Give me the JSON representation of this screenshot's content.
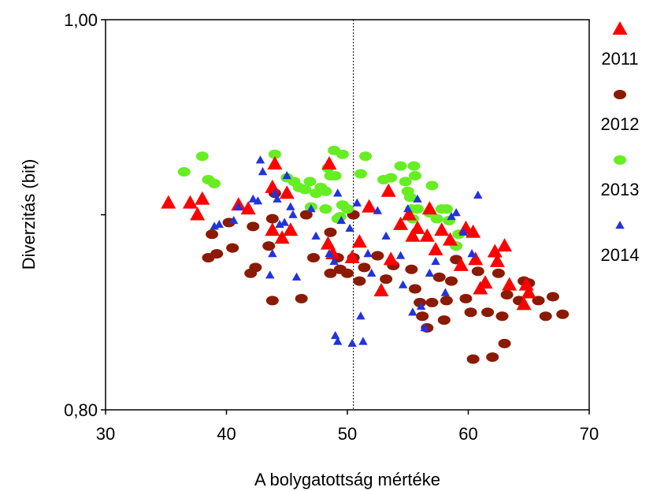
{
  "chart_data": {
    "type": "scatter",
    "xlabel": "A bolygatottság mértéke",
    "ylabel": "Diverzitás (bit)",
    "xlim": [
      30,
      70
    ],
    "ylim": [
      0.8,
      1.0
    ],
    "x_ticks": [
      "30",
      "40",
      "50",
      "60",
      "70"
    ],
    "y_ticks": [
      "0,80",
      "1,00"
    ],
    "grid": false,
    "legend_position": "right",
    "reference_line": {
      "x": 50.5,
      "style": "dotted"
    },
    "series": [
      {
        "name": "2011",
        "marker": "triangle-large",
        "color": "#ff0000",
        "points": [
          [
            35.2,
            0.906
          ],
          [
            37,
            0.906
          ],
          [
            37.6,
            0.9
          ],
          [
            38,
            0.908
          ],
          [
            41,
            0.905
          ],
          [
            41.8,
            0.903
          ],
          [
            43.8,
            0.914
          ],
          [
            44,
            0.926
          ],
          [
            43.8,
            0.892
          ],
          [
            44.6,
            0.888
          ],
          [
            45,
            0.911
          ],
          [
            45.3,
            0.892
          ],
          [
            48.5,
            0.926
          ],
          [
            48.4,
            0.885
          ],
          [
            48.8,
            0.88
          ],
          [
            50.4,
            0.878
          ],
          [
            51,
            0.886
          ],
          [
            51.8,
            0.904
          ],
          [
            52.8,
            0.861
          ],
          [
            53.4,
            0.912
          ],
          [
            53.6,
            0.877
          ],
          [
            54.4,
            0.895
          ],
          [
            55.1,
            0.9
          ],
          [
            55.4,
            0.889
          ],
          [
            55.8,
            0.893
          ],
          [
            56.8,
            0.903
          ],
          [
            56.6,
            0.889
          ],
          [
            57.3,
            0.882
          ],
          [
            57.8,
            0.892
          ],
          [
            58.5,
            0.887
          ],
          [
            59.4,
            0.874
          ],
          [
            59.8,
            0.893
          ],
          [
            60.4,
            0.891
          ],
          [
            60.6,
            0.877
          ],
          [
            61,
            0.862
          ],
          [
            61.4,
            0.865
          ],
          [
            62.2,
            0.881
          ],
          [
            62.4,
            0.876
          ],
          [
            63,
            0.884
          ],
          [
            63.4,
            0.864
          ],
          [
            64.6,
            0.854
          ],
          [
            64.8,
            0.864
          ],
          [
            65,
            0.86
          ]
        ]
      },
      {
        "name": "2012",
        "marker": "ellipse",
        "color": "#8b1a00",
        "points": [
          [
            38.5,
            0.878
          ],
          [
            38.8,
            0.89
          ],
          [
            39.2,
            0.88
          ],
          [
            40.2,
            0.896
          ],
          [
            40.5,
            0.883
          ],
          [
            42,
            0.87
          ],
          [
            42.4,
            0.873
          ],
          [
            42.2,
            0.894
          ],
          [
            43.5,
            0.884
          ],
          [
            43.8,
            0.898
          ],
          [
            43.8,
            0.856
          ],
          [
            44,
            0.911
          ],
          [
            46.2,
            0.857
          ],
          [
            46.6,
            0.9
          ],
          [
            47.2,
            0.878
          ],
          [
            48.6,
            0.891
          ],
          [
            48.6,
            0.87
          ],
          [
            49.2,
            0.878
          ],
          [
            49.4,
            0.872
          ],
          [
            50,
            0.87
          ],
          [
            50.5,
            0.878
          ],
          [
            50.5,
            0.9
          ],
          [
            51,
            0.866
          ],
          [
            51.4,
            0.873
          ],
          [
            52.5,
            0.879
          ],
          [
            53.2,
            0.867
          ],
          [
            53.8,
            0.874
          ],
          [
            55.3,
            0.872
          ],
          [
            55.6,
            0.862
          ],
          [
            56,
            0.855
          ],
          [
            56.2,
            0.848
          ],
          [
            56.6,
            0.842
          ],
          [
            57,
            0.855
          ],
          [
            57.6,
            0.868
          ],
          [
            58,
            0.846
          ],
          [
            58.2,
            0.856
          ],
          [
            58.6,
            0.866
          ],
          [
            59,
            0.877
          ],
          [
            59.8,
            0.857
          ],
          [
            60.2,
            0.85
          ],
          [
            60.4,
            0.826
          ],
          [
            60.8,
            0.871
          ],
          [
            61.6,
            0.85
          ],
          [
            62,
            0.827
          ],
          [
            62.5,
            0.87
          ],
          [
            62.8,
            0.848
          ],
          [
            63,
            0.834
          ],
          [
            63.2,
            0.859
          ],
          [
            64.2,
            0.856
          ],
          [
            64.6,
            0.866
          ],
          [
            65,
            0.865
          ],
          [
            65.8,
            0.856
          ],
          [
            66.4,
            0.848
          ],
          [
            67,
            0.858
          ],
          [
            67.8,
            0.849
          ]
        ]
      },
      {
        "name": "2013",
        "marker": "ellipse",
        "color": "#66ee22",
        "points": [
          [
            36.5,
            0.922
          ],
          [
            38,
            0.93
          ],
          [
            38.5,
            0.918
          ],
          [
            39,
            0.916
          ],
          [
            44,
            0.931
          ],
          [
            45,
            0.919
          ],
          [
            45.6,
            0.917
          ],
          [
            46,
            0.914
          ],
          [
            46.5,
            0.913
          ],
          [
            46.9,
            0.917
          ],
          [
            47,
            0.904
          ],
          [
            47.4,
            0.911
          ],
          [
            47.8,
            0.914
          ],
          [
            48.2,
            0.903
          ],
          [
            48.2,
            0.912
          ],
          [
            48.4,
            0.924
          ],
          [
            48.6,
            0.92
          ],
          [
            48.9,
            0.933
          ],
          [
            49,
            0.92
          ],
          [
            49.2,
            0.898
          ],
          [
            49.4,
            0.899
          ],
          [
            49.6,
            0.931
          ],
          [
            49.6,
            0.905
          ],
          [
            50,
            0.903
          ],
          [
            51.1,
            0.921
          ],
          [
            51.5,
            0.93
          ],
          [
            53,
            0.918
          ],
          [
            53.6,
            0.919
          ],
          [
            54.4,
            0.925
          ],
          [
            54.8,
            0.917
          ],
          [
            55,
            0.912
          ],
          [
            55.2,
            0.909
          ],
          [
            55.3,
            0.903
          ],
          [
            55.4,
            0.898
          ],
          [
            55.5,
            0.925
          ],
          [
            55.6,
            0.92
          ],
          [
            55.8,
            0.903
          ],
          [
            56.8,
            0.901
          ],
          [
            57,
            0.915
          ],
          [
            57.4,
            0.898
          ],
          [
            57.8,
            0.903
          ],
          [
            58.2,
            0.903
          ],
          [
            58.4,
            0.897
          ],
          [
            59,
            0.884
          ],
          [
            59.2,
            0.89
          ]
        ]
      },
      {
        "name": "2014",
        "marker": "triangle-small",
        "color": "#2233dd",
        "points": [
          [
            39,
            0.894
          ],
          [
            39.4,
            0.895
          ],
          [
            40.6,
            0.897
          ],
          [
            41,
            0.904
          ],
          [
            42.2,
            0.908
          ],
          [
            42.6,
            0.907
          ],
          [
            42.8,
            0.928
          ],
          [
            43,
            0.922
          ],
          [
            43.8,
            0.88
          ],
          [
            43.6,
            0.869
          ],
          [
            44,
            0.911
          ],
          [
            44.2,
            0.908
          ],
          [
            44.4,
            0.895
          ],
          [
            44.8,
            0.896
          ],
          [
            45,
            0.92
          ],
          [
            45.3,
            0.904
          ],
          [
            45.5,
            0.9
          ],
          [
            45.8,
            0.868
          ],
          [
            47,
            0.903
          ],
          [
            47.4,
            0.889
          ],
          [
            48.5,
            0.88
          ],
          [
            48.9,
            0.876
          ],
          [
            49,
            0.838
          ],
          [
            49.2,
            0.835
          ],
          [
            49.2,
            0.911
          ],
          [
            49.5,
            0.897
          ],
          [
            50.2,
            0.893
          ],
          [
            50.4,
            0.834
          ],
          [
            50.8,
            0.906
          ],
          [
            51.1,
            0.848
          ],
          [
            51.3,
            0.835
          ],
          [
            51.7,
            0.88
          ],
          [
            52,
            0.87
          ],
          [
            52.5,
            0.902
          ],
          [
            53.2,
            0.889
          ],
          [
            54.4,
            0.879
          ],
          [
            54.6,
            0.864
          ],
          [
            55,
            0.903
          ],
          [
            55.4,
            0.85
          ],
          [
            55.8,
            0.908
          ],
          [
            56.1,
            0.853
          ],
          [
            56.4,
            0.842
          ],
          [
            56.8,
            0.87
          ],
          [
            57.3,
            0.876
          ],
          [
            58.1,
            0.86
          ],
          [
            58.6,
            0.899
          ],
          [
            59,
            0.901
          ],
          [
            59.6,
            0.891
          ],
          [
            60.3,
            0.88
          ],
          [
            60.8,
            0.91
          ]
        ]
      }
    ]
  }
}
